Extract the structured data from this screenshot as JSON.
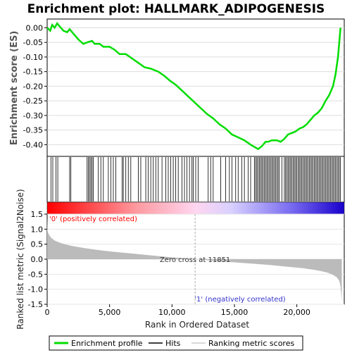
{
  "title": "Enrichment plot: HALLMARK_ADIPOGENESIS",
  "colors": {
    "es_line": "#00dd00",
    "hit_line": "#000000",
    "metric_fill": "#bbbbbb",
    "pos_label": "#ff0000",
    "neg_label": "#3333cc",
    "red_end": "#ff0000",
    "blue_end": "#1a00cc"
  },
  "chart_data": [
    {
      "type": "line",
      "name": "enrichment-score",
      "ylabel": "Enrichment score (ES)",
      "xlim": [
        0,
        23800
      ],
      "ylim": [
        -0.44,
        0.03
      ],
      "yticks": [
        0.0,
        -0.05,
        -0.1,
        -0.15,
        -0.2,
        -0.25,
        -0.3,
        -0.35,
        -0.4
      ],
      "ytick_labels": [
        "0.00",
        "-0.05",
        "-0.10",
        "-0.15",
        "-0.20",
        "-0.25",
        "-0.30",
        "-0.35",
        "-0.40"
      ],
      "grid": true,
      "series": [
        {
          "name": "Enrichment profile",
          "x": [
            0,
            250,
            400,
            600,
            800,
            1000,
            1300,
            1600,
            1800,
            2100,
            2500,
            2900,
            3200,
            3600,
            3800,
            4200,
            4500,
            5000,
            5400,
            5800,
            6300,
            6800,
            7300,
            7800,
            8300,
            8900,
            9400,
            9800,
            10300,
            10800,
            11300,
            11800,
            12300,
            12800,
            13300,
            13800,
            14300,
            14800,
            15300,
            15800,
            16300,
            16700,
            16900,
            17200,
            17500,
            17700,
            18000,
            18400,
            18700,
            19000,
            19300,
            19600,
            19900,
            20200,
            20500,
            20800,
            21100,
            21400,
            21700,
            22000,
            22300,
            22600,
            22900,
            23100,
            23300,
            23400,
            23500
          ],
          "y": [
            0.0,
            -0.01,
            0.01,
            0.0,
            0.015,
            0.005,
            -0.01,
            -0.015,
            -0.005,
            -0.02,
            -0.04,
            -0.055,
            -0.05,
            -0.045,
            -0.055,
            -0.055,
            -0.065,
            -0.065,
            -0.075,
            -0.09,
            -0.09,
            -0.105,
            -0.12,
            -0.135,
            -0.14,
            -0.15,
            -0.165,
            -0.18,
            -0.195,
            -0.215,
            -0.235,
            -0.255,
            -0.275,
            -0.295,
            -0.31,
            -0.33,
            -0.345,
            -0.365,
            -0.375,
            -0.385,
            -0.4,
            -0.41,
            -0.415,
            -0.405,
            -0.39,
            -0.39,
            -0.385,
            -0.385,
            -0.39,
            -0.38,
            -0.365,
            -0.36,
            -0.355,
            -0.345,
            -0.34,
            -0.33,
            -0.315,
            -0.3,
            -0.29,
            -0.275,
            -0.25,
            -0.23,
            -0.2,
            -0.16,
            -0.1,
            -0.05,
            0.0
          ]
        }
      ]
    },
    {
      "type": "scatter",
      "name": "hits",
      "series": [
        {
          "name": "Hits",
          "x": [
            300,
            450,
            700,
            850,
            1800,
            1900,
            3200,
            3300,
            3400,
            3500,
            3600,
            3700,
            4100,
            4300,
            4500,
            4900,
            5100,
            5300,
            5500,
            6000,
            6100,
            6300,
            6500,
            6700,
            7300,
            7500,
            7900,
            8100,
            8300,
            8500,
            8700,
            8900,
            9200,
            9500,
            9700,
            9900,
            10100,
            10300,
            10500,
            10800,
            11000,
            11200,
            11400,
            11600,
            11700,
            11900,
            12100,
            12900,
            13100,
            13300,
            13900,
            14300,
            14600,
            14800,
            15100,
            15300,
            15600,
            15800,
            16100,
            16300,
            16600,
            16700,
            16800,
            16900,
            17000,
            17100,
            17200,
            17300,
            17400,
            17500,
            17600,
            17700,
            17800,
            17900,
            18000,
            18100,
            18200,
            18300,
            18400,
            18500,
            18600,
            18800,
            19000,
            19100,
            19200,
            19300,
            19400,
            19500,
            19600,
            19700,
            19800,
            19900,
            20000,
            20100,
            20200,
            20300,
            20400,
            20500,
            20600,
            20700,
            20800,
            20900,
            21000,
            21100,
            21200,
            21300,
            21400,
            21500,
            21600,
            21700,
            21800,
            21900,
            22000,
            22100,
            22200,
            22300,
            22400,
            22500,
            22600,
            22700,
            22800,
            22900,
            23000,
            23100,
            23200,
            23300,
            23400,
            23500
          ]
        }
      ]
    },
    {
      "type": "area",
      "name": "ranked-list-metric",
      "ylabel": "Ranked list metric (Signal2Noise)",
      "xlabel": "Rank in Ordered Dataset",
      "xlim": [
        0,
        23800
      ],
      "ylim": [
        -1.5,
        1.5
      ],
      "xticks": [
        0,
        5000,
        10000,
        15000,
        20000
      ],
      "xtick_labels": [
        "0",
        "5,000",
        "10,000",
        "15,000",
        "20,000"
      ],
      "yticks": [
        1.5,
        1.0,
        0.5,
        0.0,
        -0.5,
        -1.0,
        -1.5
      ],
      "ytick_labels": [
        "1.5",
        "1.0",
        "0.5",
        "0.0",
        "-0.5",
        "-1.0",
        "-1.5"
      ],
      "series": [
        {
          "name": "Ranking metric scores",
          "x": [
            0,
            30,
            100,
            300,
            600,
            1000,
            1500,
            2000,
            3000,
            4000,
            5000,
            6000,
            7000,
            8000,
            9000,
            10000,
            11000,
            11851,
            12500,
            13500,
            14500,
            15500,
            16500,
            17500,
            18500,
            19500,
            20500,
            21500,
            22000,
            22500,
            22900,
            23200,
            23400,
            23500,
            23600
          ],
          "y": [
            1.4,
            0.95,
            0.85,
            0.72,
            0.62,
            0.55,
            0.49,
            0.44,
            0.37,
            0.31,
            0.26,
            0.22,
            0.18,
            0.14,
            0.1,
            0.06,
            0.03,
            0.0,
            -0.02,
            -0.06,
            -0.09,
            -0.12,
            -0.15,
            -0.18,
            -0.22,
            -0.26,
            -0.3,
            -0.36,
            -0.4,
            -0.45,
            -0.52,
            -0.6,
            -0.72,
            -0.9,
            -1.4
          ]
        }
      ],
      "annotations": {
        "zero_cross": "Zero cross at 11851",
        "zero_cross_x": 11851,
        "positive": "'0' (positively correlated)",
        "negative": "'1' (negatively correlated)"
      }
    }
  ],
  "legend": {
    "items": [
      {
        "label": "Enrichment profile"
      },
      {
        "label": "Hits"
      },
      {
        "label": "Ranking metric scores"
      }
    ]
  }
}
